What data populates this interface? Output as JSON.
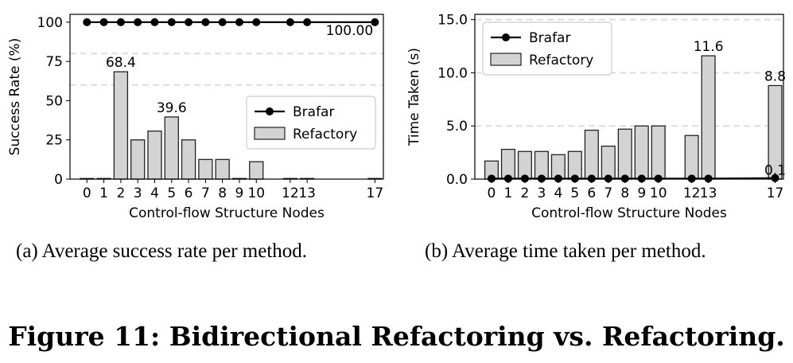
{
  "figure": {
    "title": "Figure 11: Bidirectional Refactoring vs. Refactoring.",
    "caption_a": "(a)  Average success rate per method.",
    "caption_b": "(b)  Average time taken per method."
  },
  "colors": {
    "bar_fill": "#d3d3d3",
    "bar_stroke": "#222222",
    "line": "#000000",
    "grid": "#dddddd"
  },
  "chart_data": [
    {
      "type": "bar",
      "title": "",
      "xlabel": "Control-flow Structure Nodes",
      "ylabel": "Success Rate (%)",
      "x_ticks": [
        0,
        1,
        2,
        3,
        4,
        5,
        6,
        7,
        8,
        9,
        10,
        12,
        13,
        17
      ],
      "x_range": [
        -1,
        17.5
      ],
      "ylim": [
        0,
        105
      ],
      "y_ticks": [
        0,
        25,
        50,
        75,
        100
      ],
      "y_tick_labels": [
        "0",
        "25",
        "50",
        "75",
        "100"
      ],
      "grid_lines_y": [
        60,
        80
      ],
      "legend": {
        "placement": "center-right",
        "entries": [
          "Brafar",
          "Refactory"
        ]
      },
      "series": [
        {
          "name": "Refactory",
          "kind": "bar",
          "x": [
            0,
            1,
            2,
            3,
            4,
            5,
            6,
            7,
            8,
            9,
            10,
            12,
            13,
            17
          ],
          "values": [
            0,
            0,
            68.4,
            25,
            30.6,
            39.6,
            25,
            12.5,
            12.5,
            0,
            11.1,
            0,
            0,
            0
          ]
        },
        {
          "name": "Brafar",
          "kind": "line",
          "x": [
            0,
            1,
            2,
            3,
            4,
            5,
            6,
            7,
            8,
            9,
            10,
            12,
            13,
            17
          ],
          "values": [
            100,
            100,
            100,
            100,
            100,
            100,
            100,
            100,
            100,
            100,
            100,
            100,
            100,
            100
          ]
        }
      ],
      "annotations": [
        {
          "text": "68.4",
          "x": 2,
          "y": 68.4
        },
        {
          "text": "39.6",
          "x": 5,
          "y": 39.6
        },
        {
          "text": "100.00",
          "x": 15.5,
          "y": 100
        }
      ]
    },
    {
      "type": "bar",
      "title": "",
      "xlabel": "Control-flow Structure Nodes",
      "ylabel": "Time Taken (s)",
      "x_ticks": [
        0,
        1,
        2,
        3,
        4,
        5,
        6,
        7,
        8,
        9,
        10,
        12,
        13,
        17
      ],
      "x_range": [
        -1,
        17.5
      ],
      "ylim": [
        0,
        15.5
      ],
      "y_ticks": [
        0,
        5,
        10,
        15
      ],
      "y_tick_labels": [
        "0.0",
        "5.0",
        "10.0",
        "15.0"
      ],
      "grid_lines_y": [
        5,
        10,
        15
      ],
      "legend": {
        "placement": "top-left",
        "entries": [
          "Brafar",
          "Refactory"
        ]
      },
      "series": [
        {
          "name": "Refactory",
          "kind": "bar",
          "x": [
            0,
            1,
            2,
            3,
            4,
            5,
            6,
            7,
            8,
            9,
            10,
            12,
            13,
            17
          ],
          "values": [
            1.7,
            2.8,
            2.6,
            2.6,
            2.3,
            2.6,
            4.6,
            3.1,
            4.7,
            5.0,
            5.0,
            4.1,
            11.6,
            8.8
          ]
        },
        {
          "name": "Brafar",
          "kind": "line",
          "x": [
            0,
            1,
            2,
            3,
            4,
            5,
            6,
            7,
            8,
            9,
            10,
            12,
            13,
            17
          ],
          "values": [
            0.05,
            0.05,
            0.05,
            0.05,
            0.05,
            0.05,
            0.05,
            0.05,
            0.05,
            0.05,
            0.05,
            0.05,
            0.05,
            0.1
          ]
        }
      ],
      "annotations": [
        {
          "text": "11.6",
          "x": 13,
          "y": 11.6
        },
        {
          "text": "8.8",
          "x": 17,
          "y": 8.8
        },
        {
          "text": "0.1",
          "x": 17,
          "y": 0.1
        }
      ]
    }
  ]
}
